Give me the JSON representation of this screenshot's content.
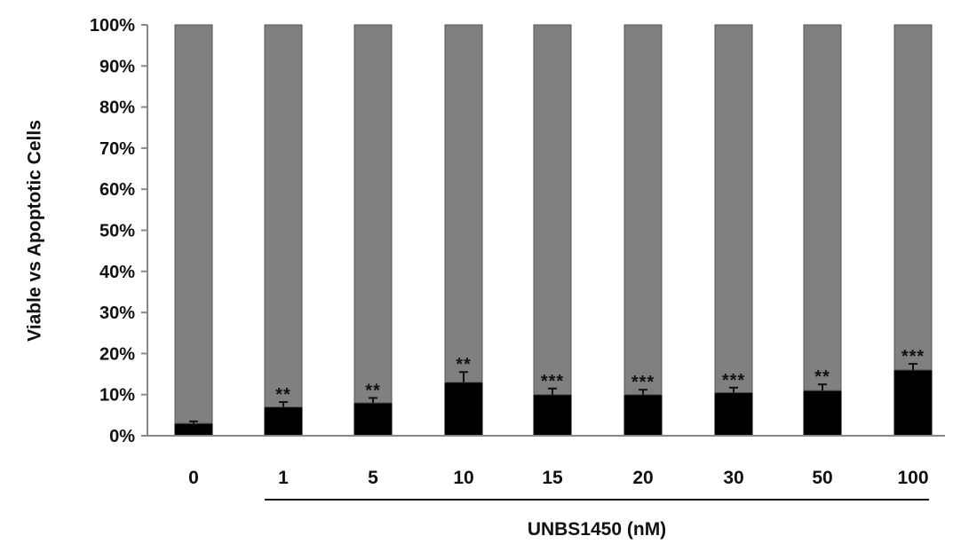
{
  "chart_data": {
    "type": "bar",
    "stacked": true,
    "percent": true,
    "categories": [
      "0",
      "1",
      "5",
      "10",
      "15",
      "20",
      "30",
      "50",
      "100"
    ],
    "series": [
      {
        "values": [
          3,
          7,
          8,
          13,
          10,
          10,
          10.5,
          11,
          16
        ],
        "color": "#000000"
      },
      {
        "values": [
          97,
          93,
          92,
          87,
          90,
          90,
          89.5,
          89,
          84
        ],
        "color": "#808080"
      }
    ],
    "error_bars": [
      0.5,
      1.2,
      1.2,
      2.5,
      1.5,
      1.2,
      1.2,
      1.5,
      1.5
    ],
    "significance": [
      "",
      "**",
      "**",
      "**",
      "***",
      "***",
      "***",
      "**",
      "***"
    ],
    "ylim": [
      0,
      100
    ],
    "yticks": [
      "0%",
      "10%",
      "20%",
      "30%",
      "40%",
      "50%",
      "60%",
      "70%",
      "80%",
      "90%",
      "100%"
    ],
    "ylabel": "Viable vs Apoptotic Cells",
    "xlabel": "",
    "group_label": "UNBS1450 (nM)",
    "grid": false,
    "legend": "none"
  }
}
